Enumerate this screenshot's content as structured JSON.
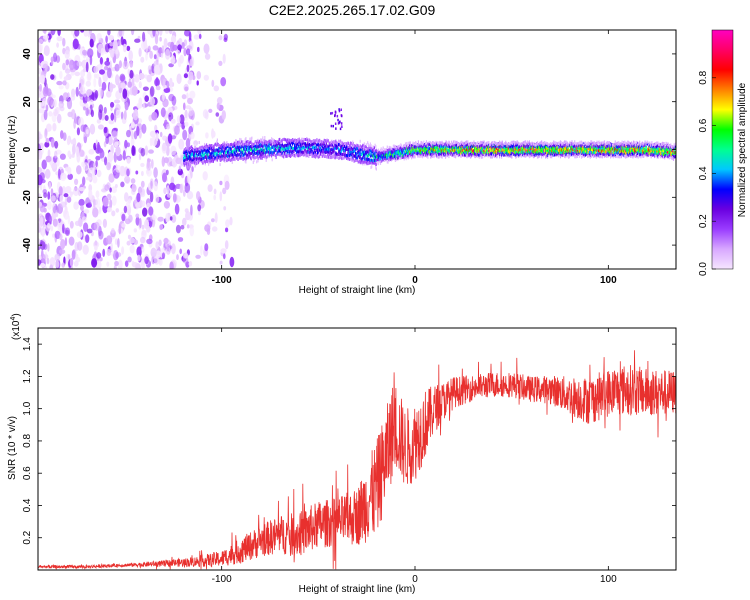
{
  "title": "C2E2.2025.265.17.02.G09",
  "chart_data": [
    {
      "type": "heatmap",
      "name": "spectrogram",
      "xlabel": "Height of straight line (km)",
      "ylabel": "Frequency (Hz)",
      "xlim": [
        -195,
        135
      ],
      "ylim": [
        -50,
        50
      ],
      "xticks": [
        -100,
        0,
        100
      ],
      "xtick_labels": [
        "-100",
        "0",
        "100"
      ],
      "yticks": [
        -40,
        -20,
        0,
        20,
        40
      ],
      "ytick_labels": [
        "-40",
        "-20",
        "0",
        "20",
        "40"
      ],
      "colorbar": {
        "label": "Normalized spectral amplitude",
        "range": [
          0,
          1
        ],
        "ticks": [
          0.0,
          0.2,
          0.4,
          0.6,
          0.8
        ],
        "tick_labels": [
          "0.0",
          "0.2",
          "0.4",
          "0.6",
          "0.8"
        ],
        "colors": [
          "#f6e6ff",
          "#d8a8ff",
          "#9a3cff",
          "#6a00e0",
          "#0000ff",
          "#00c8ff",
          "#00ff90",
          "#00ff00",
          "#ffff00",
          "#ff8000",
          "#ff0000",
          "#ff0066",
          "#ff00c0"
        ]
      },
      "noise_region_x": [
        -195,
        -115
      ],
      "signal_track": [
        {
          "x": -120,
          "freq": -3,
          "amp": 0.45
        },
        {
          "x": -100,
          "freq": -1,
          "amp": 0.48
        },
        {
          "x": -80,
          "freq": 0,
          "amp": 0.5
        },
        {
          "x": -60,
          "freq": 1,
          "amp": 0.45
        },
        {
          "x": -40,
          "freq": 0,
          "amp": 0.4
        },
        {
          "x": -20,
          "freq": -3,
          "amp": 0.55
        },
        {
          "x": 0,
          "freq": 0,
          "amp": 0.75
        },
        {
          "x": 20,
          "freq": 0,
          "amp": 0.85
        },
        {
          "x": 40,
          "freq": 0,
          "amp": 0.9
        },
        {
          "x": 60,
          "freq": 0,
          "amp": 0.9
        },
        {
          "x": 80,
          "freq": 0,
          "amp": 0.88
        },
        {
          "x": 100,
          "freq": 0,
          "amp": 0.85
        },
        {
          "x": 120,
          "freq": 0,
          "amp": 0.9
        },
        {
          "x": 135,
          "freq": -1,
          "amp": 0.85
        }
      ]
    },
    {
      "type": "line",
      "name": "snr",
      "xlabel": "Height of straight line (km)",
      "ylabel": "SNR (10 * v/v)",
      "y_multiplier_label": "(x10",
      "y_multiplier_exponent": "4",
      "y_multiplier_close": ")",
      "xlim": [
        -195,
        135
      ],
      "ylim": [
        0,
        1.5
      ],
      "xticks": [
        -100,
        0,
        100
      ],
      "xtick_labels": [
        "-100",
        "0",
        "100"
      ],
      "yticks": [
        0.2,
        0.4,
        0.6,
        0.8,
        1.0,
        1.2,
        1.4
      ],
      "ytick_labels": [
        "0.2",
        "0.4",
        "0.6",
        "0.8",
        "1.0",
        "1.2",
        "1.4"
      ],
      "color": "#e8302e",
      "series": [
        {
          "name": "SNR",
          "x": [
            -195,
            -170,
            -150,
            -130,
            -115,
            -100,
            -90,
            -80,
            -70,
            -60,
            -50,
            -40,
            -30,
            -25,
            -20,
            -15,
            -12,
            -10,
            -5,
            0,
            5,
            10,
            15,
            20,
            30,
            40,
            50,
            60,
            70,
            80,
            90,
            100,
            110,
            120,
            135
          ],
          "y": [
            0.02,
            0.02,
            0.03,
            0.04,
            0.05,
            0.07,
            0.12,
            0.18,
            0.22,
            0.22,
            0.28,
            0.3,
            0.33,
            0.42,
            0.5,
            0.7,
            0.85,
            0.9,
            0.75,
            0.8,
            0.9,
            1.0,
            1.05,
            1.1,
            1.13,
            1.15,
            1.15,
            1.12,
            1.12,
            1.08,
            1.05,
            1.1,
            1.12,
            1.1,
            1.1
          ],
          "noise": [
            0.01,
            0.01,
            0.01,
            0.02,
            0.03,
            0.05,
            0.08,
            0.1,
            0.12,
            0.14,
            0.15,
            0.15,
            0.18,
            0.25,
            0.3,
            0.3,
            0.3,
            0.28,
            0.25,
            0.25,
            0.22,
            0.15,
            0.12,
            0.1,
            0.08,
            0.08,
            0.08,
            0.08,
            0.09,
            0.12,
            0.15,
            0.15,
            0.16,
            0.15,
            0.14
          ]
        }
      ]
    }
  ]
}
